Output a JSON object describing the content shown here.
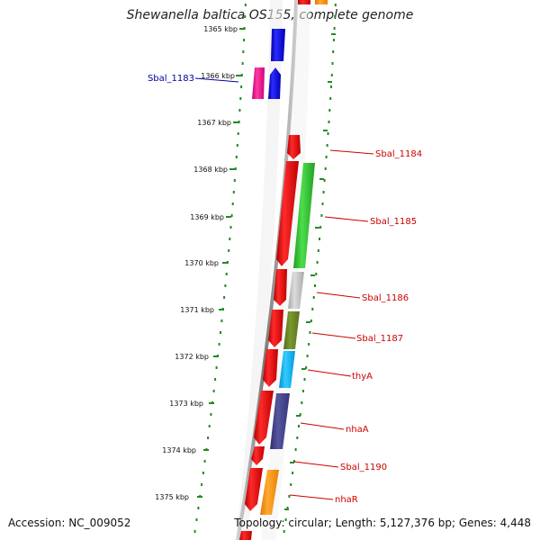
{
  "title": "Shewanella baltica OS155, complete genome",
  "footer": {
    "accession": "Accession: NC_009052",
    "summary": "Topology: circular; Length: 5,127,376 bp; Genes: 4,448"
  },
  "ruler": {
    "ticks": [
      {
        "label": "1365 kbp"
      },
      {
        "label": "1366 kbp"
      },
      {
        "label": "1367 kbp"
      },
      {
        "label": "1368 kbp"
      },
      {
        "label": "1369 kbp"
      },
      {
        "label": "1370 kbp"
      },
      {
        "label": "1371 kbp"
      },
      {
        "label": "1372 kbp"
      },
      {
        "label": "1373 kbp"
      },
      {
        "label": "1374 kbp"
      },
      {
        "label": "1375 kbp"
      }
    ]
  },
  "gene_labels": {
    "left": [
      {
        "name": "Sbal_1183",
        "color": "#000099"
      }
    ],
    "right": [
      {
        "name": "Sbal_1184",
        "color": "#cc0000"
      },
      {
        "name": "Sbal_1185",
        "color": "#cc0000"
      },
      {
        "name": "Sbal_1186",
        "color": "#cc0000"
      },
      {
        "name": "Sbal_1187",
        "color": "#cc0000"
      },
      {
        "name": "thyA",
        "color": "#cc0000"
      },
      {
        "name": "nhaA",
        "color": "#cc0000"
      },
      {
        "name": "Sbal_1190",
        "color": "#cc0000"
      },
      {
        "name": "nhaR",
        "color": "#cc0000"
      }
    ]
  },
  "colors": {
    "backbone": "#808080",
    "dots": "#228b22",
    "cds": "#ff0000",
    "reverse_strand": "#0000ff",
    "left_feature": "#ff1493"
  }
}
